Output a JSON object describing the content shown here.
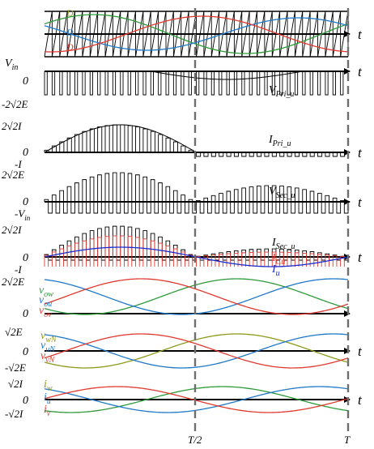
{
  "colors": {
    "axis": "#000000",
    "dash": "#6e6e6e",
    "green": "#2e9a3a",
    "blue": "#1f78c8",
    "red": "#e03a30",
    "olive": "#8d9a1a",
    "darkblue": "#1a2ad0"
  },
  "time_axis": {
    "label": "t",
    "half_label": "T/2",
    "end_label": "T"
  },
  "panels": [
    {
      "id": "carrier",
      "labels": {
        "da": "D",
        "db": "D",
        "dc": "D"
      }
    },
    {
      "id": "vpri",
      "y_top": "V",
      "y_top_sub": "in",
      "y_zero": "0",
      "y_bottom": "-2√2E",
      "curve_label": "V",
      "curve_sub": "Pri_u"
    },
    {
      "id": "ipri",
      "y_top": "2√2I",
      "y_zero": "0",
      "y_bottom": "-I",
      "curve_label": "I",
      "curve_sub": "Pri_u"
    },
    {
      "id": "vsec",
      "y_top": "2√2E",
      "y_zero": "0",
      "y_bottom": "-V",
      "y_bottom_sub": "in",
      "curve_label": "V",
      "curve_sub": "Sec_u"
    },
    {
      "id": "isec",
      "y_top": "2√2I",
      "y_zero": "0",
      "y_bottom": "-I",
      "curve_label": "I",
      "curve_sub": "Sec_u",
      "cu_label": "I",
      "cu_sub": "Cu",
      "iu_label": "I",
      "iu_sub": "u"
    },
    {
      "id": "vo",
      "y_top": "2√2E",
      "y_zero": "0",
      "l1": "v",
      "l1_sub": "ow",
      "l2": "v",
      "l2_sub": "ou",
      "l3": "v",
      "l3_sub": "ov"
    },
    {
      "id": "von",
      "y_top": "√2E",
      "y_zero": "0",
      "y_bottom": "-√2E",
      "l1": "v",
      "l1_sub": "wN",
      "l2": "v",
      "l2_sub": "uN",
      "l3": "v",
      "l3_sub": "vN"
    },
    {
      "id": "iout",
      "y_top": "√2I",
      "y_zero": "0",
      "y_bottom": "-√2I",
      "l1": "i",
      "l1_sub": "w",
      "l2": "i",
      "l2_sub": "u",
      "l3": "i",
      "l3_sub": "v"
    }
  ]
}
